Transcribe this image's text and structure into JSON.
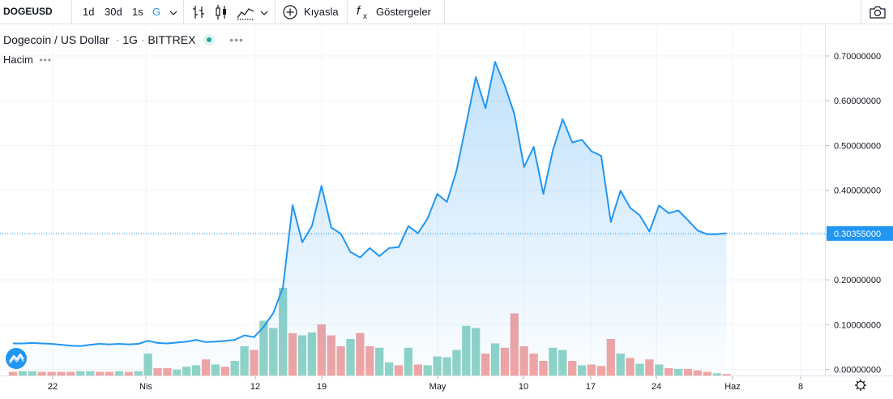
{
  "toolbar": {
    "symbol": "DOGEUSD",
    "range_1d": "1d",
    "range_30d": "30d",
    "interval_1s": "1s",
    "interval_g": "G",
    "compare_label": "Kıyasla",
    "indicators_label": "Göstergeler"
  },
  "legend": {
    "title": "Dogecoin / US Dollar",
    "interval": "1G",
    "exchange": "BITTREX",
    "volume_label": "Hacim"
  },
  "colors": {
    "line": "#2196f3",
    "up_volume": "#8fd3c7",
    "down_volume": "#f0a4a4",
    "price_tag": "#2196f3"
  },
  "current_price": "0.30355000",
  "price_axis": [
    "0.70000000",
    "0.60000000",
    "0.50000000",
    "0.40000000",
    "0.30000000",
    "0.20000000",
    "0.10000000",
    "0.00000000"
  ],
  "time_axis": [
    "22",
    "Nis",
    "12",
    "19",
    "May",
    "10",
    "17",
    "24",
    "Haz",
    "8"
  ],
  "chart_data": {
    "type": "line",
    "title": "Dogecoin / US Dollar",
    "xlabel": "",
    "ylabel": "",
    "ylim": [
      0,
      0.73
    ],
    "series": [
      {
        "values": [
          0.058,
          0.058,
          0.059,
          0.058,
          0.057,
          0.055,
          0.053,
          0.052,
          0.055,
          0.057,
          0.056,
          0.057,
          0.056,
          0.057,
          0.064,
          0.059,
          0.058,
          0.06,
          0.062,
          0.066,
          0.061,
          0.062,
          0.064,
          0.066,
          0.076,
          0.072,
          0.095,
          0.126,
          0.183,
          0.367,
          0.284,
          0.32,
          0.41,
          0.317,
          0.303,
          0.262,
          0.25,
          0.271,
          0.253,
          0.271,
          0.273,
          0.32,
          0.304,
          0.337,
          0.392,
          0.374,
          0.444,
          0.548,
          0.653,
          0.583,
          0.687,
          0.634,
          0.57,
          0.452,
          0.497,
          0.392,
          0.49,
          0.559,
          0.507,
          0.513,
          0.487,
          0.477,
          0.329,
          0.399,
          0.361,
          0.344,
          0.308,
          0.366,
          0.349,
          0.355,
          0.333,
          0.31,
          0.302,
          0.302,
          0.304
        ]
      }
    ],
    "volume": [
      5,
      6,
      6,
      5,
      5,
      5,
      5,
      6,
      6,
      5,
      5,
      6,
      5,
      6,
      30,
      10,
      10,
      8,
      12,
      14,
      22,
      15,
      12,
      20,
      40,
      35,
      75,
      65,
      120,
      58,
      55,
      59,
      70,
      55,
      40,
      50,
      58,
      40,
      38,
      18,
      14,
      38,
      15,
      14,
      26,
      25,
      35,
      68,
      65,
      30,
      44,
      38,
      85,
      40,
      30,
      20,
      38,
      35,
      20,
      14,
      15,
      13,
      50,
      30,
      24,
      16,
      22,
      15,
      10,
      9,
      9,
      7,
      5,
      3,
      2
    ],
    "volume_up": [
      false,
      true,
      true,
      false,
      false,
      false,
      false,
      true,
      true,
      false,
      false,
      true,
      false,
      true,
      true,
      false,
      false,
      true,
      true,
      true,
      false,
      true,
      false,
      true,
      true,
      false,
      true,
      true,
      true,
      false,
      true,
      true,
      false,
      false,
      false,
      true,
      false,
      false,
      true,
      true,
      false,
      true,
      false,
      true,
      true,
      true,
      true,
      true,
      true,
      false,
      true,
      false,
      false,
      false,
      false,
      false,
      true,
      true,
      false,
      true,
      false,
      false,
      false,
      true,
      false,
      true,
      false,
      true,
      false,
      true,
      false,
      false,
      false,
      true,
      false
    ]
  }
}
